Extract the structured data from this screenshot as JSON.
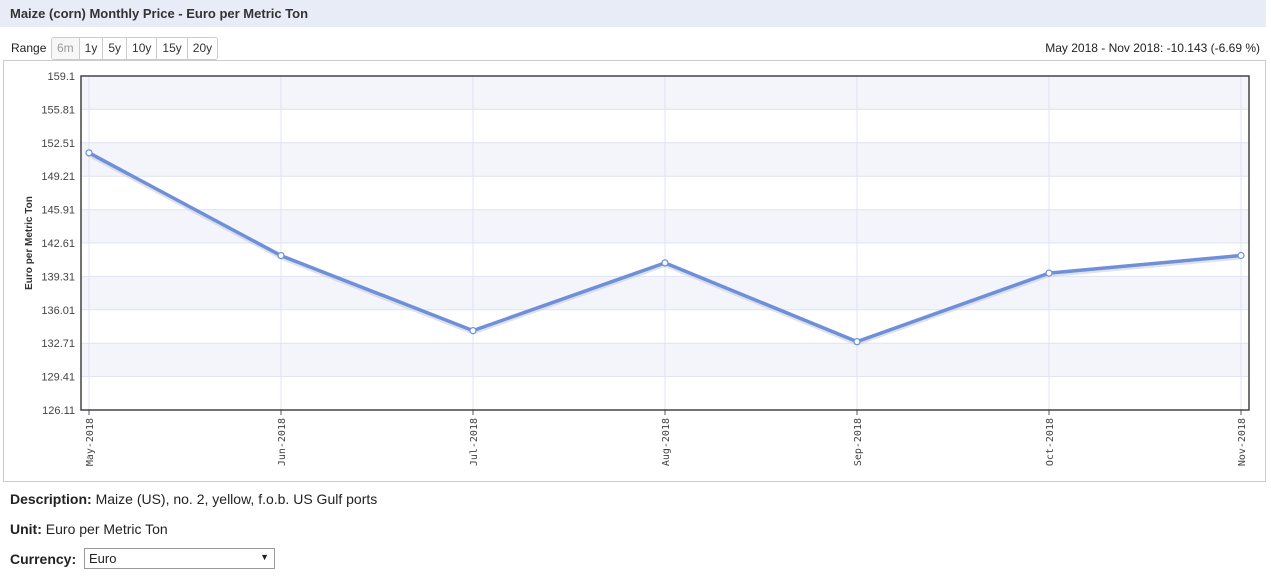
{
  "header": {
    "title": "Maize (corn) Monthly Price - Euro per Metric Ton"
  },
  "range": {
    "label": "Range",
    "buttons": [
      {
        "label": "6m",
        "disabled": true
      },
      {
        "label": "1y",
        "disabled": false
      },
      {
        "label": "5y",
        "disabled": false
      },
      {
        "label": "10y",
        "disabled": false
      },
      {
        "label": "15y",
        "disabled": false
      },
      {
        "label": "20y",
        "disabled": false
      }
    ],
    "summary": "May 2018 - Nov 2018: -10.143 (-6.69 %)"
  },
  "chart_data": {
    "type": "line",
    "title": "",
    "xlabel": "",
    "ylabel": "Euro per Metric Ton",
    "categories": [
      "May-2018",
      "Jun-2018",
      "Jul-2018",
      "Aug-2018",
      "Sep-2018",
      "Oct-2018",
      "Nov-2018"
    ],
    "series": [
      {
        "values": [
          151.51,
          141.36,
          133.95,
          140.64,
          132.86,
          139.63,
          141.37
        ]
      }
    ],
    "y_ticks": [
      "159.1",
      "155.81",
      "152.51",
      "149.21",
      "145.91",
      "142.61",
      "139.31",
      "136.01",
      "132.71",
      "129.41",
      "126.11"
    ],
    "ylim": [
      126.11,
      159.1
    ],
    "grid": true,
    "line_color": "#6f8fd8",
    "band_color": "#f3f5fb"
  },
  "info": {
    "description_label": "Description:",
    "description_value": "Maize (US), no. 2, yellow, f.o.b. US Gulf ports",
    "unit_label": "Unit:",
    "unit_value": "Euro per Metric Ton",
    "currency_label": "Currency:",
    "currency_value": "Euro"
  }
}
